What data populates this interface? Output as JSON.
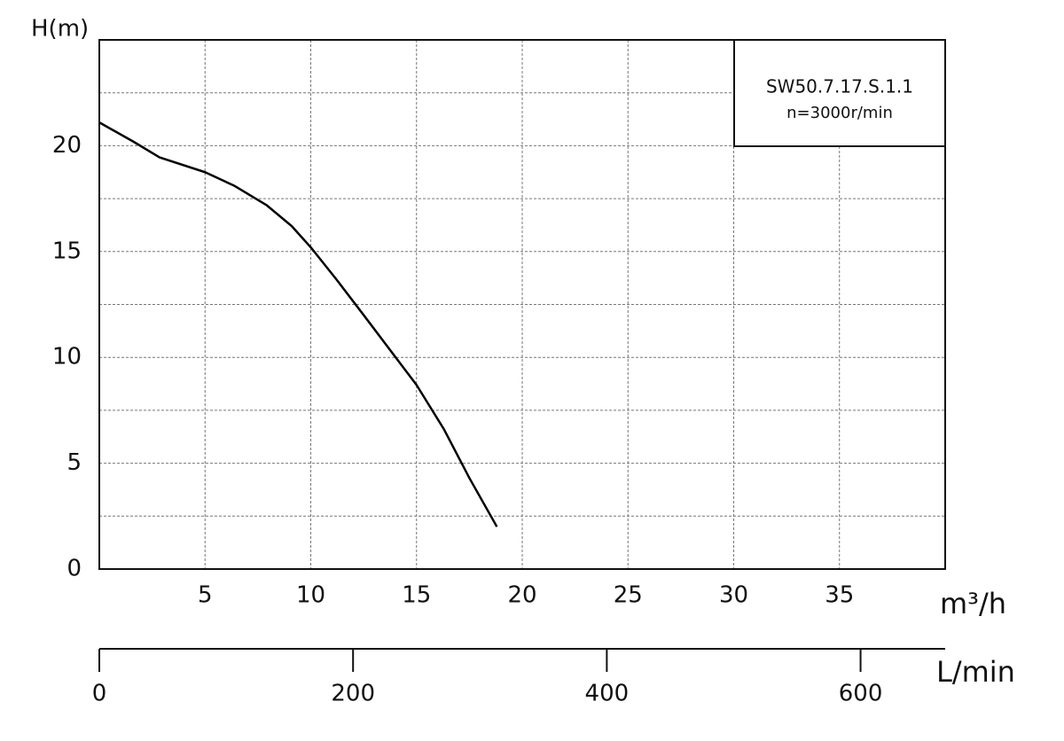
{
  "chart_data": {
    "type": "line",
    "ylabel": "H(m)",
    "xlabel": "m³/h",
    "x2label": "L/min",
    "legend": [
      "SW50.7.17.S.1.1",
      "n=3000r/min"
    ],
    "x": [
      0,
      1.6,
      2.85,
      5,
      6.4,
      7.9,
      9.1,
      10,
      11.2,
      12.5,
      13.75,
      15,
      16.3,
      17.5,
      18.8
    ],
    "series": [
      {
        "color": "#000000",
        "values": [
          21.1,
          20.2,
          19.45,
          18.75,
          18.1,
          17.2,
          16.2,
          15.2,
          13.7,
          12.0,
          10.35,
          8.7,
          6.6,
          4.3,
          2.0
        ]
      }
    ],
    "xlim": [
      0,
      40
    ],
    "xticks": [
      5,
      10,
      15,
      20,
      25,
      30,
      35
    ],
    "ylim": [
      0,
      25
    ],
    "yticks": [
      0,
      5,
      10,
      15,
      20
    ],
    "yminorticks": [
      2.5,
      7.5,
      12.5,
      17.5,
      22.5
    ],
    "x2lim": [
      0,
      666.7
    ],
    "x2ticks": [
      0,
      200,
      400,
      600
    ],
    "grid": true
  }
}
